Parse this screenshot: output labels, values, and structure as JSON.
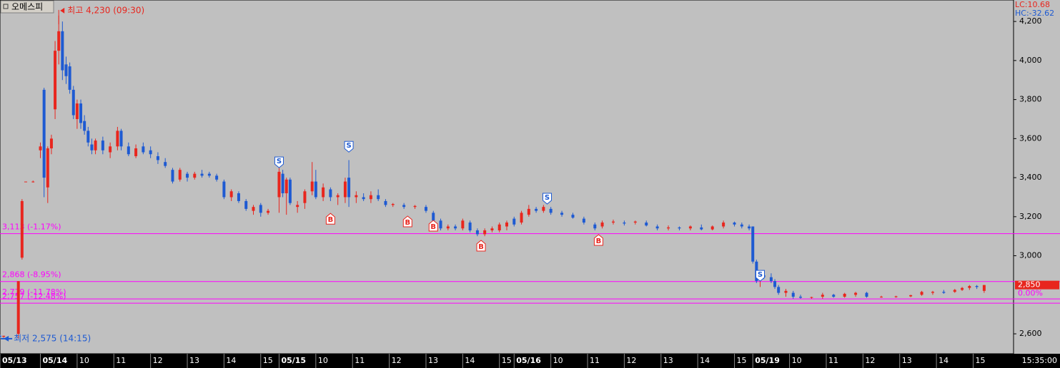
{
  "chart_data": {
    "type": "candlestick",
    "title": "오메스피",
    "lc": "LC:10.68",
    "hc": "HC:-32.62",
    "up_color": "#e8261e",
    "down_color": "#1e5ad2",
    "level_color": "#ff00ff",
    "xlim": [
      0,
      276
    ],
    "ylim": [
      2498,
      4310
    ],
    "yticks": [
      {
        "value": 4200,
        "label": "4,200"
      },
      {
        "value": 4000,
        "label": "4,000"
      },
      {
        "value": 3800,
        "label": "3,800"
      },
      {
        "value": 3600,
        "label": "3,600"
      },
      {
        "value": 3400,
        "label": "3,400"
      },
      {
        "value": 3200,
        "label": "3,200"
      },
      {
        "value": 3000,
        "label": "3,000"
      },
      {
        "value": 2600,
        "label": "2,600"
      }
    ],
    "xticks": [
      {
        "value": 0,
        "label": "05/13"
      },
      {
        "value": 11,
        "label": "05/14"
      },
      {
        "value": 21,
        "label": "10"
      },
      {
        "value": 31,
        "label": "11"
      },
      {
        "value": 41,
        "label": "12"
      },
      {
        "value": 51,
        "label": "13"
      },
      {
        "value": 61,
        "label": "14"
      },
      {
        "value": 71,
        "label": "15"
      },
      {
        "value": 76,
        "label": "05/15"
      },
      {
        "value": 86,
        "label": "10"
      },
      {
        "value": 96,
        "label": "11"
      },
      {
        "value": 106,
        "label": "12"
      },
      {
        "value": 116,
        "label": "13"
      },
      {
        "value": 126,
        "label": "14"
      },
      {
        "value": 136,
        "label": "15"
      },
      {
        "value": 140,
        "label": "05/16"
      },
      {
        "value": 150,
        "label": "10"
      },
      {
        "value": 160,
        "label": "11"
      },
      {
        "value": 170,
        "label": "12"
      },
      {
        "value": 180,
        "label": "13"
      },
      {
        "value": 190,
        "label": "14"
      },
      {
        "value": 200,
        "label": "15"
      },
      {
        "value": 205,
        "label": "05/19"
      },
      {
        "value": 215,
        "label": "10"
      },
      {
        "value": 225,
        "label": "11"
      },
      {
        "value": 235,
        "label": "12"
      },
      {
        "value": 245,
        "label": "13"
      },
      {
        "value": 255,
        "label": "14"
      },
      {
        "value": 265,
        "label": "15"
      }
    ],
    "time_label": "15:35:00",
    "levels": [
      {
        "value": 3113,
        "label": "3,113 (-1.17%)"
      },
      {
        "value": 2868,
        "label": "2,868 (-8.95%)"
      },
      {
        "value": 2779,
        "label": "2,779 (-11.78%)"
      },
      {
        "value": 2757,
        "label": "2,757 (-12.48%)"
      }
    ],
    "high": {
      "x": 16,
      "value": 4230,
      "label": "최고 4,230 (09:30)"
    },
    "low": {
      "x": 1,
      "value": 2575,
      "label": "최저 2,575 (14:15)"
    },
    "current": {
      "value": 2850,
      "label": "2,850"
    },
    "current_change": "0.00%",
    "signals": [
      {
        "label": "S",
        "x": 76,
        "price": 3451
      },
      {
        "label": "S",
        "x": 95,
        "price": 3531
      },
      {
        "label": "S",
        "x": 149,
        "price": 3265
      },
      {
        "label": "S",
        "x": 207,
        "price": 2870
      },
      {
        "label": "B",
        "x": 90,
        "price": 3217
      },
      {
        "label": "B",
        "x": 111,
        "price": 3203
      },
      {
        "label": "B",
        "x": 118,
        "price": 3181
      },
      {
        "label": "B",
        "x": 131,
        "price": 3079
      },
      {
        "label": "B",
        "x": 163,
        "price": 3108
      }
    ],
    "candles": [
      {
        "x": 0,
        "open": 2590,
        "high": 2595,
        "low": 2580,
        "close": 2585
      },
      {
        "x": 1,
        "open": 2585,
        "high": 2590,
        "low": 2580,
        "close": 2590
      },
      {
        "x": 5,
        "open": 2600,
        "high": 2870,
        "low": 2575,
        "close": 2870
      },
      {
        "x": 6,
        "open": 2990,
        "high": 3290,
        "low": 2980,
        "close": 3280
      },
      {
        "x": 7,
        "open": 3380,
        "high": 3380,
        "low": 3380,
        "close": 3380
      },
      {
        "x": 9,
        "open": 3380,
        "high": 3385,
        "low": 3375,
        "close": 3380
      },
      {
        "x": 11,
        "open": 3540,
        "high": 3580,
        "low": 3500,
        "close": 3560
      },
      {
        "x": 12,
        "open": 3850,
        "high": 3860,
        "low": 3300,
        "close": 3400
      },
      {
        "x": 13,
        "open": 3350,
        "high": 3560,
        "low": 3270,
        "close": 3550
      },
      {
        "x": 14,
        "open": 3550,
        "high": 3620,
        "low": 3520,
        "close": 3600
      },
      {
        "x": 15,
        "open": 3750,
        "high": 4100,
        "low": 3700,
        "close": 4050
      },
      {
        "x": 16,
        "open": 4050,
        "high": 4230,
        "low": 3980,
        "close": 4150
      },
      {
        "x": 17,
        "open": 4150,
        "high": 4200,
        "low": 3900,
        "close": 3950
      },
      {
        "x": 18,
        "open": 3980,
        "high": 4020,
        "low": 3880,
        "close": 3920
      },
      {
        "x": 19,
        "open": 3970,
        "high": 3990,
        "low": 3830,
        "close": 3850
      },
      {
        "x": 20,
        "open": 3850,
        "high": 3870,
        "low": 3700,
        "close": 3720
      },
      {
        "x": 21,
        "open": 3700,
        "high": 3800,
        "low": 3650,
        "close": 3780
      },
      {
        "x": 22,
        "open": 3780,
        "high": 3800,
        "low": 3650,
        "close": 3680
      },
      {
        "x": 23,
        "open": 3690,
        "high": 3720,
        "low": 3620,
        "close": 3640
      },
      {
        "x": 24,
        "open": 3640,
        "high": 3660,
        "low": 3560,
        "close": 3580
      },
      {
        "x": 25,
        "open": 3570,
        "high": 3600,
        "low": 3520,
        "close": 3540
      },
      {
        "x": 26,
        "open": 3540,
        "high": 3600,
        "low": 3520,
        "close": 3590
      },
      {
        "x": 28,
        "open": 3590,
        "high": 3610,
        "low": 3520,
        "close": 3540
      },
      {
        "x": 30,
        "open": 3530,
        "high": 3580,
        "low": 3500,
        "close": 3560
      },
      {
        "x": 32,
        "open": 3560,
        "high": 3660,
        "low": 3540,
        "close": 3640
      },
      {
        "x": 33,
        "open": 3640,
        "high": 3650,
        "low": 3540,
        "close": 3560
      },
      {
        "x": 35,
        "open": 3560,
        "high": 3580,
        "low": 3510,
        "close": 3520
      },
      {
        "x": 37,
        "open": 3510,
        "high": 3570,
        "low": 3500,
        "close": 3550
      },
      {
        "x": 39,
        "open": 3560,
        "high": 3580,
        "low": 3520,
        "close": 3530
      },
      {
        "x": 41,
        "open": 3540,
        "high": 3560,
        "low": 3500,
        "close": 3520
      },
      {
        "x": 43,
        "open": 3510,
        "high": 3530,
        "low": 3470,
        "close": 3490
      },
      {
        "x": 45,
        "open": 3480,
        "high": 3500,
        "low": 3450,
        "close": 3460
      },
      {
        "x": 47,
        "open": 3440,
        "high": 3450,
        "low": 3370,
        "close": 3380
      },
      {
        "x": 49,
        "open": 3390,
        "high": 3450,
        "low": 3380,
        "close": 3440
      },
      {
        "x": 51,
        "open": 3420,
        "high": 3430,
        "low": 3380,
        "close": 3400
      },
      {
        "x": 53,
        "open": 3400,
        "high": 3430,
        "low": 3390,
        "close": 3420
      },
      {
        "x": 55,
        "open": 3420,
        "high": 3440,
        "low": 3400,
        "close": 3410
      },
      {
        "x": 57,
        "open": 3420,
        "high": 3430,
        "low": 3400,
        "close": 3410
      },
      {
        "x": 59,
        "open": 3410,
        "high": 3420,
        "low": 3380,
        "close": 3390
      },
      {
        "x": 61,
        "open": 3380,
        "high": 3390,
        "low": 3290,
        "close": 3300
      },
      {
        "x": 63,
        "open": 3300,
        "high": 3340,
        "low": 3280,
        "close": 3330
      },
      {
        "x": 65,
        "open": 3320,
        "high": 3330,
        "low": 3270,
        "close": 3280
      },
      {
        "x": 67,
        "open": 3280,
        "high": 3290,
        "low": 3230,
        "close": 3240
      },
      {
        "x": 69,
        "open": 3230,
        "high": 3260,
        "low": 3210,
        "close": 3250
      },
      {
        "x": 71,
        "open": 3260,
        "high": 3270,
        "low": 3200,
        "close": 3220
      },
      {
        "x": 73,
        "open": 3220,
        "high": 3240,
        "low": 3210,
        "close": 3230
      },
      {
        "x": 76,
        "open": 3300,
        "high": 3450,
        "low": 3220,
        "close": 3430
      },
      {
        "x": 77,
        "open": 3420,
        "high": 3440,
        "low": 3300,
        "close": 3320
      },
      {
        "x": 78,
        "open": 3320,
        "high": 3400,
        "low": 3210,
        "close": 3390
      },
      {
        "x": 79,
        "open": 3390,
        "high": 3400,
        "low": 3260,
        "close": 3270
      },
      {
        "x": 81,
        "open": 3250,
        "high": 3280,
        "low": 3220,
        "close": 3260
      },
      {
        "x": 83,
        "open": 3270,
        "high": 3340,
        "low": 3240,
        "close": 3330
      },
      {
        "x": 85,
        "open": 3330,
        "high": 3480,
        "low": 3310,
        "close": 3380
      },
      {
        "x": 86,
        "open": 3380,
        "high": 3440,
        "low": 3290,
        "close": 3300
      },
      {
        "x": 88,
        "open": 3300,
        "high": 3370,
        "low": 3280,
        "close": 3350
      },
      {
        "x": 90,
        "open": 3340,
        "high": 3350,
        "low": 3280,
        "close": 3300
      },
      {
        "x": 92,
        "open": 3300,
        "high": 3320,
        "low": 3260,
        "close": 3310
      },
      {
        "x": 94,
        "open": 3300,
        "high": 3400,
        "low": 3270,
        "close": 3380
      },
      {
        "x": 95,
        "open": 3400,
        "high": 3490,
        "low": 3250,
        "close": 3300
      },
      {
        "x": 97,
        "open": 3300,
        "high": 3330,
        "low": 3270,
        "close": 3310
      },
      {
        "x": 99,
        "open": 3300,
        "high": 3320,
        "low": 3280,
        "close": 3290
      },
      {
        "x": 101,
        "open": 3290,
        "high": 3330,
        "low": 3270,
        "close": 3310
      },
      {
        "x": 103,
        "open": 3310,
        "high": 3340,
        "low": 3280,
        "close": 3290
      },
      {
        "x": 105,
        "open": 3280,
        "high": 3290,
        "low": 3250,
        "close": 3260
      },
      {
        "x": 107,
        "open": 3260,
        "high": 3270,
        "low": 3250,
        "close": 3265
      },
      {
        "x": 110,
        "open": 3260,
        "high": 3270,
        "low": 3240,
        "close": 3250
      },
      {
        "x": 113,
        "open": 3250,
        "high": 3260,
        "low": 3240,
        "close": 3255
      },
      {
        "x": 116,
        "open": 3250,
        "high": 3260,
        "low": 3220,
        "close": 3230
      },
      {
        "x": 118,
        "open": 3220,
        "high": 3230,
        "low": 3170,
        "close": 3180
      },
      {
        "x": 120,
        "open": 3180,
        "high": 3190,
        "low": 3130,
        "close": 3140
      },
      {
        "x": 122,
        "open": 3140,
        "high": 3160,
        "low": 3130,
        "close": 3150
      },
      {
        "x": 124,
        "open": 3150,
        "high": 3160,
        "low": 3130,
        "close": 3140
      },
      {
        "x": 126,
        "open": 3140,
        "high": 3190,
        "low": 3130,
        "close": 3180
      },
      {
        "x": 128,
        "open": 3170,
        "high": 3180,
        "low": 3120,
        "close": 3130
      },
      {
        "x": 130,
        "open": 3130,
        "high": 3140,
        "low": 3100,
        "close": 3110
      },
      {
        "x": 132,
        "open": 3110,
        "high": 3140,
        "low": 3100,
        "close": 3130
      },
      {
        "x": 134,
        "open": 3130,
        "high": 3150,
        "low": 3120,
        "close": 3140
      },
      {
        "x": 136,
        "open": 3130,
        "high": 3170,
        "low": 3120,
        "close": 3160
      },
      {
        "x": 138,
        "open": 3150,
        "high": 3180,
        "low": 3130,
        "close": 3170
      },
      {
        "x": 140,
        "open": 3190,
        "high": 3200,
        "low": 3150,
        "close": 3160
      },
      {
        "x": 142,
        "open": 3170,
        "high": 3230,
        "low": 3160,
        "close": 3220
      },
      {
        "x": 144,
        "open": 3210,
        "high": 3260,
        "low": 3200,
        "close": 3240
      },
      {
        "x": 146,
        "open": 3240,
        "high": 3250,
        "low": 3220,
        "close": 3230
      },
      {
        "x": 148,
        "open": 3230,
        "high": 3260,
        "low": 3220,
        "close": 3250
      },
      {
        "x": 150,
        "open": 3240,
        "high": 3250,
        "low": 3210,
        "close": 3220
      },
      {
        "x": 153,
        "open": 3220,
        "high": 3230,
        "low": 3200,
        "close": 3210
      },
      {
        "x": 156,
        "open": 3210,
        "high": 3220,
        "low": 3190,
        "close": 3195
      },
      {
        "x": 159,
        "open": 3190,
        "high": 3200,
        "low": 3160,
        "close": 3170
      },
      {
        "x": 162,
        "open": 3160,
        "high": 3170,
        "low": 3130,
        "close": 3140
      },
      {
        "x": 164,
        "open": 3150,
        "high": 3180,
        "low": 3140,
        "close": 3170
      },
      {
        "x": 167,
        "open": 3170,
        "high": 3185,
        "low": 3160,
        "close": 3175
      },
      {
        "x": 170,
        "open": 3170,
        "high": 3180,
        "low": 3155,
        "close": 3165
      },
      {
        "x": 173,
        "open": 3170,
        "high": 3180,
        "low": 3160,
        "close": 3175
      },
      {
        "x": 176,
        "open": 3170,
        "high": 3180,
        "low": 3150,
        "close": 3155
      },
      {
        "x": 179,
        "open": 3150,
        "high": 3160,
        "low": 3130,
        "close": 3140
      },
      {
        "x": 182,
        "open": 3140,
        "high": 3155,
        "low": 3130,
        "close": 3145
      },
      {
        "x": 185,
        "open": 3145,
        "high": 3150,
        "low": 3130,
        "close": 3140
      },
      {
        "x": 188,
        "open": 3140,
        "high": 3155,
        "low": 3130,
        "close": 3150
      },
      {
        "x": 191,
        "open": 3145,
        "high": 3160,
        "low": 3130,
        "close": 3135
      },
      {
        "x": 194,
        "open": 3135,
        "high": 3155,
        "low": 3130,
        "close": 3150
      },
      {
        "x": 197,
        "open": 3150,
        "high": 3180,
        "low": 3140,
        "close": 3170
      },
      {
        "x": 200,
        "open": 3170,
        "high": 3175,
        "low": 3150,
        "close": 3160
      },
      {
        "x": 202,
        "open": 3160,
        "high": 3170,
        "low": 3140,
        "close": 3150
      },
      {
        "x": 204,
        "open": 3150,
        "high": 3160,
        "low": 3130,
        "close": 3140
      },
      {
        "x": 205,
        "open": 3150,
        "high": 3150,
        "low": 2960,
        "close": 2970
      },
      {
        "x": 206,
        "open": 2970,
        "high": 2980,
        "low": 2860,
        "close": 2870
      },
      {
        "x": 207,
        "open": 2880,
        "high": 2910,
        "low": 2840,
        "close": 2900
      },
      {
        "x": 208,
        "open": 2900,
        "high": 2910,
        "low": 2880,
        "close": 2890
      },
      {
        "x": 210,
        "open": 2890,
        "high": 2910,
        "low": 2860,
        "close": 2870
      },
      {
        "x": 211,
        "open": 2870,
        "high": 2880,
        "low": 2830,
        "close": 2840
      },
      {
        "x": 212,
        "open": 2840,
        "high": 2850,
        "low": 2800,
        "close": 2810
      },
      {
        "x": 214,
        "open": 2810,
        "high": 2830,
        "low": 2790,
        "close": 2820
      },
      {
        "x": 216,
        "open": 2810,
        "high": 2820,
        "low": 2780,
        "close": 2790
      },
      {
        "x": 218,
        "open": 2790,
        "high": 2800,
        "low": 2780,
        "close": 2785
      },
      {
        "x": 221,
        "open": 2785,
        "high": 2790,
        "low": 2780,
        "close": 2788
      },
      {
        "x": 224,
        "open": 2790,
        "high": 2810,
        "low": 2780,
        "close": 2800
      },
      {
        "x": 227,
        "open": 2800,
        "high": 2805,
        "low": 2785,
        "close": 2790
      },
      {
        "x": 230,
        "open": 2790,
        "high": 2810,
        "low": 2785,
        "close": 2805
      },
      {
        "x": 233,
        "open": 2800,
        "high": 2815,
        "low": 2790,
        "close": 2810
      },
      {
        "x": 236,
        "open": 2810,
        "high": 2815,
        "low": 2785,
        "close": 2790
      },
      {
        "x": 240,
        "open": 2790,
        "high": 2795,
        "low": 2785,
        "close": 2790
      },
      {
        "x": 244,
        "open": 2788,
        "high": 2795,
        "low": 2785,
        "close": 2792
      },
      {
        "x": 248,
        "open": 2792,
        "high": 2800,
        "low": 2788,
        "close": 2798
      },
      {
        "x": 251,
        "open": 2800,
        "high": 2820,
        "low": 2795,
        "close": 2815
      },
      {
        "x": 254,
        "open": 2810,
        "high": 2820,
        "low": 2800,
        "close": 2815
      },
      {
        "x": 257,
        "open": 2815,
        "high": 2825,
        "low": 2805,
        "close": 2810
      },
      {
        "x": 260,
        "open": 2815,
        "high": 2830,
        "low": 2810,
        "close": 2825
      },
      {
        "x": 262,
        "open": 2825,
        "high": 2840,
        "low": 2820,
        "close": 2835
      },
      {
        "x": 264,
        "open": 2835,
        "high": 2850,
        "low": 2825,
        "close": 2845
      },
      {
        "x": 266,
        "open": 2845,
        "high": 2850,
        "low": 2830,
        "close": 2840
      },
      {
        "x": 268,
        "open": 2820,
        "high": 2850,
        "low": 2810,
        "close": 2850
      }
    ]
  }
}
